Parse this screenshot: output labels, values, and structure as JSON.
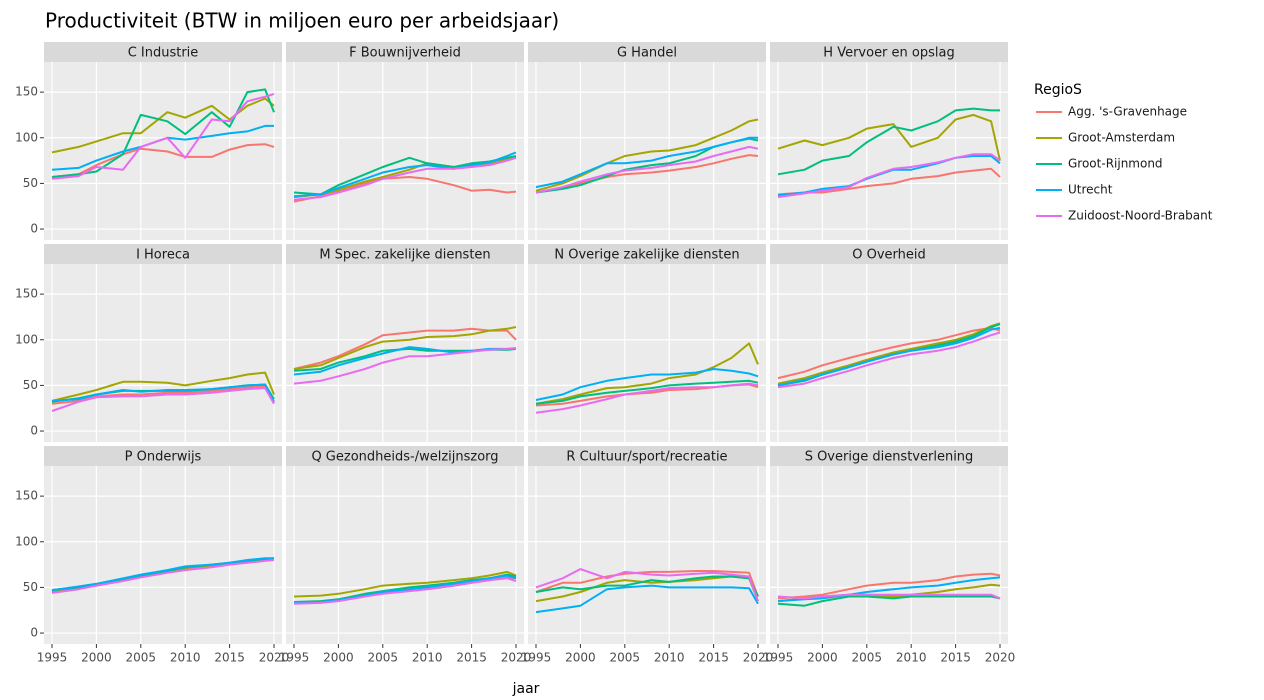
{
  "chart_data": {
    "type": "line",
    "title": "Productiviteit (BTW in miljoen euro per arbeidsjaar)",
    "xlabel": "jaar",
    "legend_title": "RegioS",
    "x": [
      1995,
      1998,
      2000,
      2003,
      2005,
      2008,
      2010,
      2013,
      2015,
      2017,
      2019,
      2020
    ],
    "xlim": [
      1994.1,
      2020.9
    ],
    "xticks": [
      1995,
      2000,
      2005,
      2010,
      2015,
      2020
    ],
    "ylim": [
      -12,
      183
    ],
    "yticks": [
      0,
      50,
      100,
      150
    ],
    "grid": true,
    "series": [
      {
        "name": "Agg. 's-Gravenhage",
        "color": "#F8766D"
      },
      {
        "name": "Groot-Amsterdam",
        "color": "#A3A500"
      },
      {
        "name": "Groot-Rijnmond",
        "color": "#00BF7D"
      },
      {
        "name": "Utrecht",
        "color": "#00B0F6"
      },
      {
        "name": "Zuidoost-Noord-Brabant",
        "color": "#E76BF3"
      }
    ],
    "panels": [
      {
        "title": "C Industrie",
        "values": [
          [
            57,
            60,
            70,
            82,
            88,
            85,
            79,
            79,
            87,
            92,
            93,
            90
          ],
          [
            84,
            90,
            96,
            105,
            105,
            128,
            122,
            135,
            120,
            135,
            143,
            135
          ],
          [
            57,
            60,
            63,
            82,
            125,
            118,
            104,
            128,
            112,
            150,
            153,
            128
          ],
          [
            65,
            67,
            75,
            85,
            90,
            100,
            98,
            102,
            105,
            107,
            113,
            113
          ],
          [
            55,
            58,
            68,
            65,
            90,
            100,
            78,
            120,
            118,
            140,
            145,
            148
          ]
        ]
      },
      {
        "title": "F Bouwnijverheid",
        "values": [
          [
            30,
            36,
            42,
            50,
            55,
            57,
            55,
            48,
            42,
            43,
            40,
            41
          ],
          [
            35,
            38,
            43,
            52,
            57,
            65,
            72,
            68,
            70,
            72,
            76,
            78
          ],
          [
            40,
            38,
            48,
            60,
            68,
            78,
            72,
            68,
            72,
            74,
            78,
            80
          ],
          [
            36,
            38,
            45,
            55,
            62,
            68,
            70,
            66,
            70,
            73,
            80,
            84
          ],
          [
            32,
            35,
            40,
            48,
            55,
            62,
            66,
            66,
            68,
            70,
            75,
            78
          ]
        ]
      },
      {
        "title": "G Handel",
        "values": [
          [
            40,
            45,
            50,
            57,
            60,
            62,
            64,
            68,
            72,
            77,
            81,
            80
          ],
          [
            42,
            50,
            58,
            72,
            80,
            85,
            86,
            92,
            100,
            108,
            118,
            120
          ],
          [
            40,
            44,
            48,
            58,
            65,
            70,
            72,
            80,
            90,
            95,
            99,
            97
          ],
          [
            46,
            52,
            60,
            72,
            72,
            75,
            80,
            85,
            90,
            95,
            100,
            100
          ],
          [
            40,
            46,
            52,
            60,
            64,
            67,
            70,
            74,
            80,
            85,
            90,
            88
          ]
        ]
      },
      {
        "title": "H Vervoer en opslag",
        "values": [
          [
            38,
            40,
            40,
            44,
            47,
            50,
            55,
            58,
            62,
            64,
            66,
            57
          ],
          [
            88,
            97,
            92,
            100,
            110,
            115,
            90,
            100,
            120,
            125,
            118,
            75
          ],
          [
            60,
            65,
            75,
            80,
            95,
            112,
            108,
            118,
            130,
            132,
            130,
            130
          ],
          [
            37,
            40,
            44,
            47,
            55,
            65,
            65,
            72,
            78,
            80,
            80,
            72
          ],
          [
            35,
            39,
            42,
            46,
            56,
            66,
            68,
            73,
            78,
            82,
            82,
            75
          ]
        ]
      },
      {
        "title": "I Horeca",
        "values": [
          [
            30,
            33,
            38,
            40,
            40,
            42,
            42,
            44,
            46,
            48,
            49,
            32
          ],
          [
            33,
            40,
            45,
            54,
            54,
            53,
            50,
            55,
            58,
            62,
            64,
            40
          ],
          [
            32,
            36,
            40,
            44,
            44,
            44,
            44,
            46,
            48,
            50,
            51,
            35
          ],
          [
            33,
            35,
            40,
            45,
            43,
            45,
            45,
            46,
            48,
            50,
            51,
            32
          ],
          [
            22,
            32,
            37,
            38,
            38,
            40,
            40,
            42,
            44,
            46,
            47,
            30
          ]
        ]
      },
      {
        "title": "M Spec. zakelijke diensten",
        "values": [
          [
            68,
            75,
            82,
            95,
            105,
            108,
            110,
            110,
            112,
            110,
            110,
            100
          ],
          [
            68,
            72,
            80,
            92,
            98,
            100,
            103,
            104,
            106,
            110,
            112,
            114
          ],
          [
            66,
            68,
            75,
            82,
            88,
            90,
            88,
            88,
            88,
            89,
            89,
            90
          ],
          [
            62,
            65,
            72,
            80,
            85,
            92,
            90,
            86,
            88,
            90,
            90,
            90
          ],
          [
            52,
            55,
            60,
            68,
            75,
            82,
            82,
            85,
            87,
            89,
            90,
            91
          ]
        ]
      },
      {
        "title": "N Overige zakelijke diensten",
        "values": [
          [
            28,
            30,
            33,
            38,
            40,
            42,
            45,
            46,
            48,
            50,
            51,
            48
          ],
          [
            30,
            35,
            40,
            47,
            48,
            52,
            58,
            62,
            70,
            80,
            96,
            73
          ],
          [
            30,
            33,
            38,
            42,
            44,
            47,
            50,
            52,
            53,
            54,
            55,
            53
          ],
          [
            34,
            40,
            48,
            55,
            58,
            62,
            62,
            64,
            68,
            66,
            63,
            60
          ],
          [
            20,
            24,
            28,
            35,
            40,
            44,
            47,
            48,
            48,
            50,
            52,
            50
          ]
        ]
      },
      {
        "title": "O Overheid",
        "values": [
          [
            58,
            65,
            72,
            80,
            85,
            92,
            96,
            100,
            105,
            110,
            113,
            110
          ],
          [
            52,
            58,
            64,
            72,
            78,
            86,
            90,
            96,
            100,
            106,
            115,
            118
          ],
          [
            50,
            55,
            62,
            70,
            76,
            84,
            88,
            94,
            98,
            104,
            114,
            117
          ],
          [
            50,
            56,
            62,
            70,
            76,
            84,
            88,
            92,
            96,
            102,
            111,
            113
          ],
          [
            48,
            52,
            58,
            66,
            72,
            80,
            84,
            88,
            92,
            98,
            105,
            108
          ]
        ]
      },
      {
        "title": "P Onderwijs",
        "values": [
          [
            45,
            49,
            52,
            58,
            62,
            67,
            70,
            73,
            76,
            78,
            80,
            80
          ],
          [
            46,
            50,
            53,
            59,
            63,
            68,
            71,
            74,
            77,
            79,
            81,
            81
          ],
          [
            47,
            50,
            53,
            59,
            63,
            68,
            72,
            75,
            77,
            79,
            81,
            82
          ],
          [
            47,
            51,
            54,
            60,
            64,
            69,
            73,
            75,
            77,
            80,
            82,
            82
          ],
          [
            44,
            48,
            52,
            57,
            61,
            66,
            69,
            72,
            75,
            77,
            79,
            80
          ]
        ]
      },
      {
        "title": "Q Gezondheids-/welzijnszorg",
        "values": [
          [
            33,
            34,
            36,
            41,
            44,
            47,
            48,
            52,
            55,
            58,
            61,
            60
          ],
          [
            40,
            41,
            43,
            48,
            52,
            54,
            55,
            58,
            60,
            63,
            67,
            63
          ],
          [
            34,
            35,
            37,
            43,
            46,
            50,
            52,
            55,
            58,
            60,
            64,
            62
          ],
          [
            33,
            34,
            36,
            41,
            45,
            48,
            50,
            54,
            57,
            60,
            63,
            60
          ],
          [
            32,
            33,
            35,
            40,
            43,
            46,
            48,
            52,
            55,
            58,
            60,
            57
          ]
        ]
      },
      {
        "title": "R Cultuur/sport/recreatie",
        "values": [
          [
            45,
            55,
            55,
            62,
            65,
            67,
            67,
            68,
            68,
            67,
            66,
            40
          ],
          [
            35,
            40,
            45,
            55,
            58,
            55,
            56,
            58,
            60,
            62,
            60,
            35
          ],
          [
            45,
            50,
            48,
            52,
            52,
            58,
            56,
            60,
            62,
            62,
            60,
            40
          ],
          [
            23,
            27,
            30,
            48,
            50,
            52,
            50,
            50,
            50,
            50,
            49,
            32
          ],
          [
            50,
            60,
            70,
            60,
            67,
            64,
            63,
            65,
            66,
            64,
            62,
            35
          ]
        ]
      },
      {
        "title": "S Overige dienstverlening",
        "values": [
          [
            38,
            40,
            42,
            48,
            52,
            55,
            55,
            58,
            62,
            64,
            65,
            63
          ],
          [
            35,
            38,
            40,
            42,
            42,
            40,
            42,
            45,
            48,
            50,
            53,
            52
          ],
          [
            32,
            30,
            35,
            40,
            40,
            38,
            40,
            40,
            40,
            40,
            40,
            38
          ],
          [
            35,
            37,
            38,
            42,
            45,
            48,
            50,
            52,
            55,
            58,
            60,
            61
          ],
          [
            40,
            38,
            40,
            42,
            42,
            42,
            42,
            42,
            42,
            42,
            42,
            38
          ]
        ]
      }
    ]
  }
}
